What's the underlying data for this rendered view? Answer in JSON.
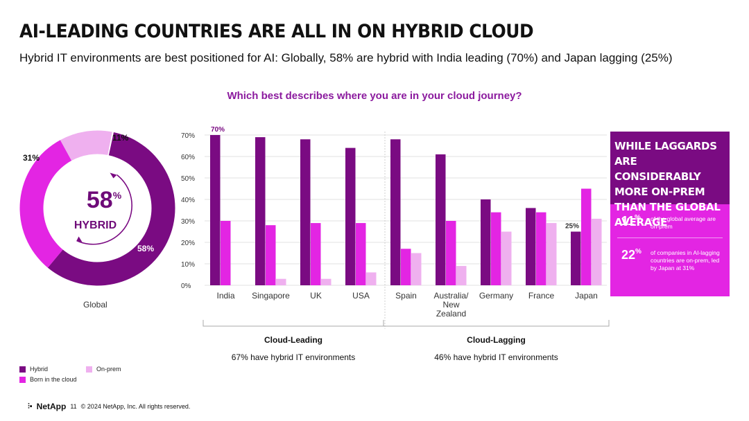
{
  "header": {
    "title": "AI-LEADING COUNTRIES ARE ALL IN ON HYBRID CLOUD",
    "subtitle": "Hybrid IT environments are best positioned for AI: Globally, 58% are hybrid with India leading (70%) and Japan lagging (25%)"
  },
  "question": "Which best describes where you are in your cloud journey?",
  "donut": {
    "center_value": "58",
    "center_unit": "%",
    "center_label": "HYBRID",
    "caption": "Global",
    "labels": {
      "hybrid": "58%",
      "born": "31%",
      "onprem": "11%"
    }
  },
  "chart_data": {
    "type": "bar",
    "categories": [
      "India",
      "Singapore",
      "UK",
      "USA",
      "Spain",
      "Australia/ New Zealand",
      "Germany",
      "France",
      "Japan"
    ],
    "series": [
      {
        "name": "Hybrid",
        "values": [
          70,
          69,
          68,
          64,
          68,
          61,
          40,
          36,
          25
        ]
      },
      {
        "name": "Born in the cloud",
        "values": [
          30,
          28,
          29,
          29,
          17,
          30,
          34,
          34,
          45
        ]
      },
      {
        "name": "On-prem",
        "values": [
          0,
          3,
          3,
          6,
          15,
          9,
          25,
          29,
          31
        ]
      }
    ],
    "ylim": [
      0,
      70
    ],
    "yticks": [
      "0%",
      "10%",
      "20%",
      "30%",
      "40%",
      "50%",
      "60%",
      "70%"
    ],
    "annotations": [
      {
        "category": "India",
        "series": "Hybrid",
        "text": "70%"
      },
      {
        "category": "Japan",
        "series": "Hybrid",
        "text": "25%"
      }
    ],
    "groups": [
      {
        "label": "Cloud-Leading",
        "note": "67% have hybrid IT environments",
        "from": 0,
        "to": 3
      },
      {
        "label": "Cloud-Lagging",
        "note": "46% have hybrid IT environments",
        "from": 4,
        "to": 8
      }
    ],
    "colors": {
      "Hybrid": "#7a0b82",
      "Born in the cloud": "#e325e3",
      "On-prem": "#efb0ef"
    },
    "grid": true,
    "legend": "bottom-left"
  },
  "callout": {
    "heading": "WHILE LAGGARDS ARE CONSIDERABLY MORE ON-PREM THAN THE GLOBAL AVERAGE",
    "stats": [
      {
        "value": "11",
        "unit": "%",
        "text": "of the global average are on-prem"
      },
      {
        "value": "22",
        "unit": "%",
        "text": "of companies in AI-lagging countries are on-prem, led by Japan at 31%"
      }
    ]
  },
  "legend": {
    "hybrid": "Hybrid",
    "onprem": "On-prem",
    "born": "Born in the cloud"
  },
  "footer": {
    "logo": "NetApp",
    "page": "11",
    "copyright": "© 2024 NetApp, Inc. All rights reserved."
  }
}
